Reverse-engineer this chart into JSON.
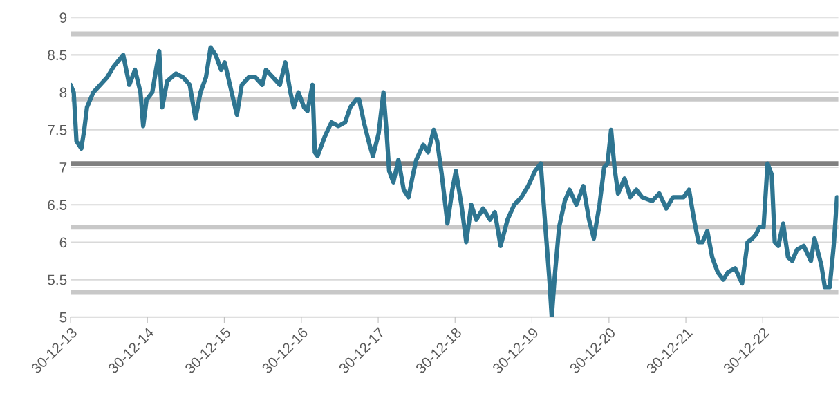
{
  "chart_data": {
    "type": "line",
    "x": [
      "2013-12-30",
      "2014-01-14",
      "2014-01-27",
      "2014-02-19",
      "2014-03-05",
      "2014-03-18",
      "2014-04-17",
      "2014-05-20",
      "2014-06-22",
      "2014-07-24",
      "2014-09-06",
      "2014-10-05",
      "2014-11-01",
      "2014-11-27",
      "2014-12-10",
      "2014-12-26",
      "2015-01-22",
      "2015-02-24",
      "2015-03-10",
      "2015-04-03",
      "2015-05-15",
      "2015-06-17",
      "2015-07-19",
      "2015-08-15",
      "2015-09-08",
      "2015-10-04",
      "2015-10-26",
      "2015-11-19",
      "2015-12-15",
      "2016-01-01",
      "2016-02-03",
      "2016-02-28",
      "2016-03-22",
      "2016-04-24",
      "2016-05-26",
      "2016-06-28",
      "2016-07-15",
      "2016-08-17",
      "2016-09-19",
      "2016-10-15",
      "2016-11-08",
      "2016-11-24",
      "2016-12-16",
      "2017-01-12",
      "2017-01-28",
      "2017-02-21",
      "2017-03-04",
      "2017-03-17",
      "2017-04-19",
      "2017-05-22",
      "2017-06-24",
      "2017-07-26",
      "2017-08-19",
      "2017-09-15",
      "2017-10-01",
      "2017-10-23",
      "2017-11-19",
      "2017-12-05",
      "2018-01-01",
      "2018-01-24",
      "2018-02-07",
      "2018-02-20",
      "2018-03-12",
      "2018-04-05",
      "2018-04-30",
      "2018-05-23",
      "2018-06-13",
      "2018-06-29",
      "2018-08-01",
      "2018-08-24",
      "2018-09-20",
      "2018-10-06",
      "2018-10-28",
      "2018-11-24",
      "2018-12-17",
      "2019-01-03",
      "2019-01-29",
      "2019-02-21",
      "2019-03-17",
      "2019-04-10",
      "2019-05-12",
      "2019-06-14",
      "2019-07-07",
      "2019-08-03",
      "2019-09-05",
      "2019-10-07",
      "2019-11-10",
      "2019-12-12",
      "2020-01-14",
      "2020-02-10",
      "2020-03-03",
      "2020-03-22",
      "2020-04-02",
      "2020-04-15",
      "2020-05-07",
      "2020-06-03",
      "2020-06-26",
      "2020-07-28",
      "2020-08-30",
      "2020-09-26",
      "2020-10-19",
      "2020-11-15",
      "2020-12-07",
      "2020-12-23",
      "2021-01-09",
      "2021-01-25",
      "2021-02-11",
      "2021-03-14",
      "2021-04-10",
      "2021-05-09",
      "2021-06-05",
      "2021-07-23",
      "2021-08-26",
      "2021-09-28",
      "2021-10-30",
      "2021-12-19",
      "2022-01-14",
      "2022-02-07",
      "2022-02-28",
      "2022-03-19",
      "2022-04-11",
      "2022-05-04",
      "2022-05-30",
      "2022-06-26",
      "2022-07-18",
      "2022-08-21",
      "2022-09-23",
      "2022-10-19",
      "2022-11-11",
      "2022-11-27",
      "2022-12-14",
      "2023-01-03",
      "2023-01-22",
      "2023-02-11",
      "2023-02-25",
      "2023-03-14",
      "2023-04-06",
      "2023-04-29",
      "2023-05-19",
      "2023-06-11",
      "2023-07-13",
      "2023-08-16",
      "2023-09-02",
      "2023-10-04",
      "2023-10-21",
      "2023-11-13",
      "2023-12-02",
      "2023-12-18"
    ],
    "series": [
      {
        "color": "#2e7591",
        "values": [
          8.1,
          8.0,
          7.35,
          7.25,
          7.5,
          7.8,
          8.0,
          8.1,
          8.2,
          8.35,
          8.5,
          8.1,
          8.3,
          8.0,
          7.55,
          7.9,
          8.0,
          8.55,
          7.8,
          8.15,
          8.25,
          8.2,
          8.1,
          7.65,
          8.0,
          8.2,
          8.6,
          8.5,
          8.3,
          8.4,
          8.0,
          7.7,
          8.1,
          8.2,
          8.2,
          8.1,
          8.3,
          8.2,
          8.1,
          8.4,
          8.0,
          7.8,
          8.0,
          7.8,
          7.75,
          8.1,
          7.2,
          7.15,
          7.4,
          7.6,
          7.55,
          7.6,
          7.8,
          7.9,
          7.9,
          7.6,
          7.3,
          7.15,
          7.45,
          8.0,
          7.5,
          6.95,
          6.8,
          7.1,
          6.7,
          6.6,
          6.9,
          7.1,
          7.3,
          7.2,
          7.5,
          7.35,
          6.9,
          6.25,
          6.7,
          6.95,
          6.5,
          6.0,
          6.5,
          6.3,
          6.45,
          6.3,
          6.4,
          5.95,
          6.3,
          6.5,
          6.6,
          6.75,
          6.95,
          7.05,
          6.2,
          5.5,
          5.0,
          5.5,
          6.2,
          6.55,
          6.7,
          6.5,
          6.75,
          6.3,
          6.05,
          6.5,
          7.0,
          7.05,
          7.5,
          7.0,
          6.65,
          6.85,
          6.6,
          6.7,
          6.6,
          6.55,
          6.65,
          6.45,
          6.6,
          6.6,
          6.7,
          6.3,
          6.0,
          6.0,
          6.15,
          5.8,
          5.6,
          5.5,
          5.6,
          5.65,
          5.45,
          6.0,
          6.05,
          6.1,
          6.2,
          6.2,
          7.05,
          6.9,
          6.0,
          5.95,
          6.25,
          5.8,
          5.75,
          5.9,
          5.95,
          5.75,
          6.05,
          5.7,
          5.4,
          5.4,
          5.95,
          6.6
        ]
      }
    ],
    "xlim": [
      "2013-12-30",
      "2023-12-24"
    ],
    "xticks": [
      {
        "value": "2013-12-30",
        "label": "30-12-13"
      },
      {
        "value": "2014-12-30",
        "label": "30-12-14"
      },
      {
        "value": "2015-12-30",
        "label": "30-12-15"
      },
      {
        "value": "2016-12-30",
        "label": "30-12-16"
      },
      {
        "value": "2017-12-30",
        "label": "30-12-17"
      },
      {
        "value": "2018-12-30",
        "label": "30-12-18"
      },
      {
        "value": "2019-12-30",
        "label": "30-12-19"
      },
      {
        "value": "2020-12-30",
        "label": "30-12-20"
      },
      {
        "value": "2021-12-30",
        "label": "30-12-21"
      },
      {
        "value": "2022-12-30",
        "label": "30-12-22"
      }
    ],
    "ylim": [
      5,
      9
    ],
    "yticks": [
      5,
      5.5,
      6,
      6.5,
      7,
      7.5,
      8,
      8.5,
      9
    ],
    "grid": "y",
    "legend": false,
    "marker": "none",
    "line_style": "solid",
    "ref_lines": [
      {
        "axis": "y",
        "value": 8.78,
        "color": "#c8c8c8"
      },
      {
        "axis": "y",
        "value": 7.91,
        "color": "#c8c8c8"
      },
      {
        "axis": "y",
        "value": 7.05,
        "color": "#808080"
      },
      {
        "axis": "y",
        "value": 6.2,
        "color": "#c8c8c8"
      },
      {
        "axis": "y",
        "value": 5.33,
        "color": "#c8c8c8"
      }
    ]
  }
}
